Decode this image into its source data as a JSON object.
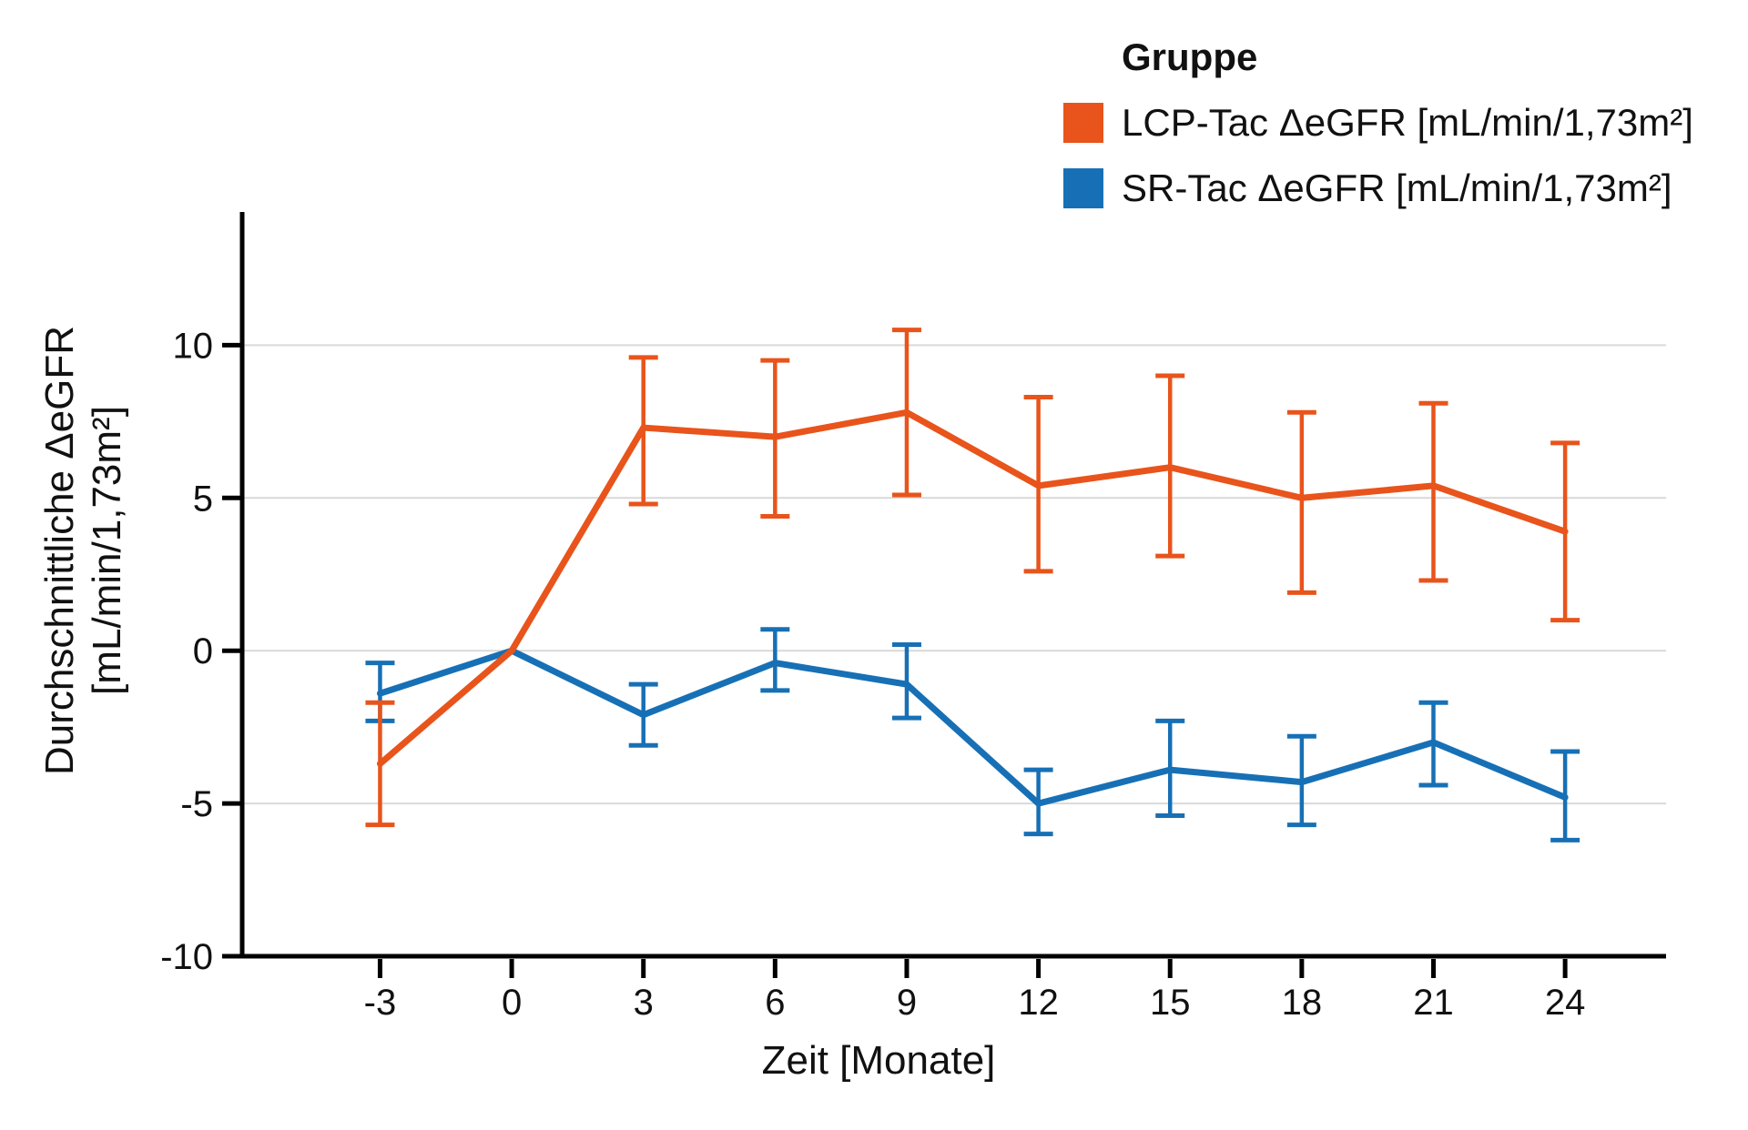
{
  "chart_data": {
    "type": "line",
    "title": "",
    "xlabel": "Zeit [Monate]",
    "ylabel_line1": "Durchschnittliche ΔeGFR",
    "ylabel_line2": "[mL/min/1,73m²]",
    "legend_title": "Gruppe",
    "legend_position": "top-right",
    "grid": true,
    "x": [
      -3,
      0,
      3,
      6,
      9,
      12,
      15,
      18,
      21,
      24
    ],
    "xticks": [
      -3,
      0,
      3,
      6,
      9,
      12,
      15,
      18,
      21,
      24
    ],
    "yticks": [
      -10,
      -5,
      0,
      5,
      10
    ],
    "xlim": [
      -6.1,
      26.3
    ],
    "ylim": [
      -10,
      14.3
    ],
    "colors": {
      "lcp_tac": "#E8541B",
      "sr_tac": "#1770B5",
      "grid": "#D9D9D9",
      "axis": "#000000"
    },
    "series": [
      {
        "name": "LCP-Tac ΔeGFR [mL/min/1,73m²]",
        "color": "#E8541B",
        "values": [
          -3.7,
          0,
          7.3,
          7.0,
          7.8,
          5.4,
          6.0,
          5.0,
          5.4,
          3.9
        ],
        "ci_high": [
          -1.7,
          null,
          9.6,
          9.5,
          10.5,
          8.3,
          9.0,
          7.8,
          8.1,
          6.8
        ],
        "ci_low": [
          -5.7,
          null,
          4.8,
          4.4,
          5.1,
          2.6,
          3.1,
          1.9,
          2.3,
          1.0
        ]
      },
      {
        "name": "SR-Tac ΔeGFR [mL/min/1,73m²]",
        "color": "#1770B5",
        "values": [
          -1.4,
          0,
          -2.1,
          -0.4,
          -1.1,
          -5.0,
          -3.9,
          -4.3,
          -3.0,
          -4.8
        ],
        "ci_high": [
          -0.4,
          null,
          -1.1,
          0.7,
          0.2,
          -3.9,
          -2.3,
          -2.8,
          -1.7,
          -3.3
        ],
        "ci_low": [
          -2.3,
          null,
          -3.1,
          -1.3,
          -2.2,
          -6.0,
          -5.4,
          -5.7,
          -4.4,
          -6.2
        ]
      }
    ]
  }
}
